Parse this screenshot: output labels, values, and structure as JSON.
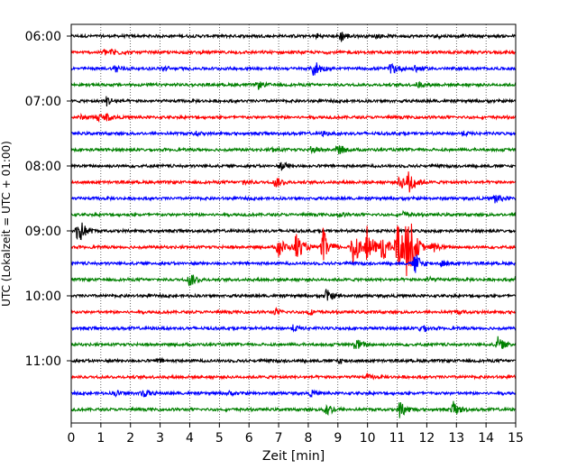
{
  "chart_data": {
    "type": "line",
    "title": "",
    "xlabel": "Zeit  [min]",
    "ylabel": "UTC (Lokalzeit = UTC + 01:00)",
    "xlim": [
      0,
      15
    ],
    "x_ticks": [
      "0",
      "1",
      "2",
      "3",
      "4",
      "5",
      "6",
      "7",
      "8",
      "9",
      "10",
      "11",
      "12",
      "13",
      "14",
      "15"
    ],
    "y_tick_labels": [
      "06:00",
      "07:00",
      "08:00",
      "09:00",
      "10:00",
      "11:00"
    ],
    "grid": "vertical dotted lines at each minute",
    "trace_colors": [
      "#000000",
      "#ff0000",
      "#0000ff",
      "#008000"
    ],
    "traces_per_hour": 4,
    "minutes_per_trace": 15,
    "series": [
      {
        "start": "06:00",
        "color": "#000000",
        "events": [
          [
            8.3,
            2
          ],
          [
            9.1,
            6
          ],
          [
            10.3,
            2
          ],
          [
            12.3,
            1.5
          ]
        ]
      },
      {
        "start": "06:15",
        "color": "#ff0000",
        "events": [
          [
            1.1,
            3
          ],
          [
            1.4,
            4
          ]
        ]
      },
      {
        "start": "06:30",
        "color": "#0000ff",
        "events": [
          [
            1.5,
            5
          ],
          [
            3.1,
            3
          ],
          [
            8.2,
            10
          ],
          [
            10.8,
            7
          ],
          [
            11.6,
            4
          ]
        ]
      },
      {
        "start": "06:45",
        "color": "#008000",
        "events": [
          [
            6.3,
            4
          ],
          [
            11.7,
            3
          ]
        ]
      },
      {
        "start": "07:00",
        "color": "#000000",
        "events": [
          [
            1.2,
            5
          ]
        ]
      },
      {
        "start": "07:15",
        "color": "#ff0000",
        "events": [
          [
            0.3,
            2
          ],
          [
            0.9,
            4
          ],
          [
            1.2,
            3
          ]
        ]
      },
      {
        "start": "07:30",
        "color": "#0000ff",
        "events": [
          [
            4.2,
            2
          ],
          [
            8.5,
            2
          ],
          [
            13.2,
            2
          ]
        ]
      },
      {
        "start": "07:45",
        "color": "#008000",
        "events": [
          [
            6.8,
            2
          ],
          [
            8.1,
            4
          ],
          [
            9.0,
            6
          ]
        ]
      },
      {
        "start": "08:00",
        "color": "#000000",
        "events": [
          [
            7.1,
            5
          ]
        ]
      },
      {
        "start": "08:15",
        "color": "#ff0000",
        "events": [
          [
            5.8,
            3
          ],
          [
            6.9,
            6
          ],
          [
            11.1,
            8
          ],
          [
            11.4,
            15
          ]
        ]
      },
      {
        "start": "08:30",
        "color": "#0000ff",
        "events": [
          [
            14.3,
            6
          ]
        ]
      },
      {
        "start": "08:45",
        "color": "#008000",
        "events": [
          [
            9.0,
            2
          ],
          [
            11.2,
            3
          ]
        ]
      },
      {
        "start": "09:00",
        "color": "#000000",
        "events": [
          [
            0.2,
            12
          ],
          [
            0.3,
            5
          ]
        ]
      },
      {
        "start": "09:15",
        "color": "#ff0000",
        "events": [
          [
            7.0,
            12
          ],
          [
            7.6,
            16
          ],
          [
            8.5,
            20
          ],
          [
            9.5,
            26
          ],
          [
            10.0,
            22
          ],
          [
            10.5,
            18
          ],
          [
            11.0,
            32
          ],
          [
            11.3,
            28
          ],
          [
            11.5,
            16
          ],
          [
            12.2,
            6
          ]
        ]
      },
      {
        "start": "09:30",
        "color": "#0000ff",
        "events": [
          [
            11.6,
            12
          ],
          [
            12.5,
            3
          ]
        ]
      },
      {
        "start": "09:45",
        "color": "#008000",
        "events": [
          [
            4.0,
            8
          ],
          [
            12.0,
            3
          ],
          [
            15.0,
            3
          ]
        ]
      },
      {
        "start": "10:00",
        "color": "#000000",
        "events": [
          [
            8.6,
            7
          ]
        ]
      },
      {
        "start": "10:15",
        "color": "#ff0000",
        "events": [
          [
            6.9,
            3
          ],
          [
            8.0,
            3
          ],
          [
            13.0,
            2
          ]
        ]
      },
      {
        "start": "10:30",
        "color": "#0000ff",
        "events": [
          [
            7.5,
            3
          ],
          [
            11.8,
            4
          ]
        ]
      },
      {
        "start": "10:45",
        "color": "#008000",
        "events": [
          [
            9.6,
            7
          ],
          [
            14.4,
            8
          ]
        ]
      },
      {
        "start": "11:00",
        "color": "#000000",
        "events": [
          [
            2.9,
            2
          ],
          [
            9.0,
            3
          ]
        ]
      },
      {
        "start": "11:15",
        "color": "#ff0000",
        "events": [
          [
            10.0,
            2
          ]
        ]
      },
      {
        "start": "11:30",
        "color": "#0000ff",
        "events": [
          [
            1.5,
            3
          ],
          [
            2.4,
            5
          ],
          [
            5.3,
            2
          ],
          [
            8.1,
            3
          ]
        ]
      },
      {
        "start": "11:45",
        "color": "#008000",
        "events": [
          [
            8.6,
            8
          ],
          [
            11.1,
            10
          ],
          [
            12.9,
            8
          ]
        ]
      }
    ]
  }
}
